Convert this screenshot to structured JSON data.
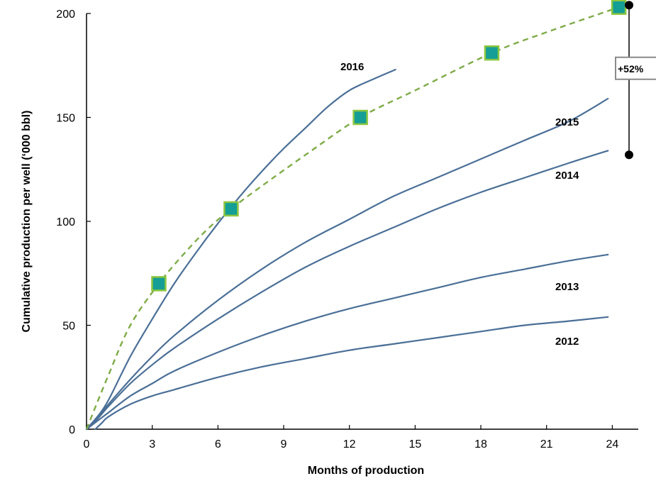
{
  "chart_data": {
    "type": "line",
    "title": "",
    "xlabel": "Months of production",
    "ylabel": "Cumulative  production per well (‘000 bbl)",
    "xlim": [
      0,
      25.5
    ],
    "ylim": [
      0,
      200
    ],
    "x_ticks": [
      0,
      3,
      6,
      9,
      12,
      15,
      18,
      21,
      24
    ],
    "y_ticks": [
      0,
      50,
      100,
      150,
      200
    ],
    "grid": false,
    "colors": {
      "series": "#4a6f97",
      "trend": "#7fab48",
      "marker_fill": "#159e95",
      "marker_edge": "#8dc63f",
      "bracket": "#000000",
      "box_edge": "#8a8a8a"
    },
    "series": [
      {
        "name": "2016",
        "x": [
          0,
          0.5,
          1,
          2,
          3,
          4,
          5,
          6,
          7,
          8,
          9,
          10,
          11,
          12,
          13,
          14.1
        ],
        "y": [
          0,
          6,
          14,
          35,
          53,
          70,
          85,
          99,
          112,
          124,
          135,
          145,
          155,
          163,
          168,
          173
        ]
      },
      {
        "name": "2015",
        "x": [
          0,
          0.5,
          1,
          2,
          3,
          4,
          6,
          8,
          10,
          12,
          14,
          16,
          18,
          20,
          22,
          23.8
        ],
        "y": [
          0,
          6,
          12,
          24,
          35,
          45,
          62,
          77,
          90,
          101,
          112,
          121,
          130,
          139,
          148,
          159
        ]
      },
      {
        "name": "2014",
        "x": [
          0,
          0.5,
          1,
          2,
          3,
          4,
          6,
          8,
          10,
          12,
          14,
          16,
          18,
          20,
          22,
          23.8
        ],
        "y": [
          0,
          5,
          11,
          22,
          31,
          39,
          53,
          66,
          78,
          88,
          97,
          106,
          114,
          121,
          128,
          134
        ]
      },
      {
        "name": "2013",
        "x": [
          0,
          0.5,
          1,
          2,
          3,
          4,
          6,
          8,
          10,
          12,
          14,
          16,
          18,
          20,
          22,
          23.8
        ],
        "y": [
          0,
          4,
          8,
          16,
          22,
          28,
          37,
          45,
          52,
          58,
          63,
          68,
          73,
          77,
          81,
          84
        ]
      },
      {
        "name": "2012",
        "x": [
          0.4,
          0.7,
          1,
          2,
          3,
          4,
          6,
          8,
          10,
          12,
          14,
          16,
          18,
          20,
          22,
          23.8
        ],
        "y": [
          0,
          3,
          6,
          12,
          16,
          19,
          25,
          30,
          34,
          38,
          41,
          44,
          47,
          50,
          52,
          54
        ]
      }
    ],
    "trend": {
      "x": [
        0,
        1,
        2,
        3.3,
        4.5,
        5.5,
        6.6,
        8,
        10,
        12.5,
        15,
        18.5,
        21,
        24.3
      ],
      "y": [
        0,
        26,
        50,
        70,
        85,
        96,
        106,
        117,
        132,
        150,
        163,
        181,
        191,
        203
      ]
    },
    "markers": [
      {
        "x": 3.3,
        "y": 70
      },
      {
        "x": 6.6,
        "y": 106
      },
      {
        "x": 12.5,
        "y": 150
      },
      {
        "x": 18.5,
        "y": 181
      },
      {
        "x": 24.3,
        "y": 203
      }
    ],
    "annotation": {
      "label": "+52%",
      "x": 25.2,
      "y_from": 132,
      "y_to": 204
    }
  }
}
